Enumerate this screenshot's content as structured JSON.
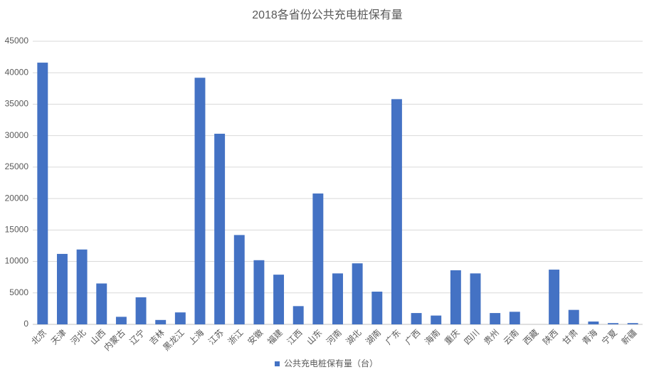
{
  "chart_data": {
    "type": "bar",
    "title": "2018各省份公共充电桩保有量",
    "categories": [
      "北京",
      "天津",
      "河北",
      "山西",
      "内蒙古",
      "辽宁",
      "吉林",
      "黑龙江",
      "上海",
      "江苏",
      "浙江",
      "安徽",
      "福建",
      "江西",
      "山东",
      "河南",
      "湖北",
      "湖南",
      "广东",
      "广西",
      "海南",
      "重庆",
      "四川",
      "贵州",
      "云南",
      "西藏",
      "陕西",
      "甘肃",
      "青海",
      "宁夏",
      "新疆"
    ],
    "series": [
      {
        "name": "公共充电桩保有量（台）",
        "color": "#4472c4",
        "values": [
          41600,
          11200,
          11900,
          6500,
          1200,
          4300,
          700,
          1900,
          39200,
          30300,
          14200,
          10200,
          7900,
          2900,
          20800,
          8100,
          9700,
          5200,
          35800,
          1800,
          1400,
          8600,
          8100,
          1800,
          2000,
          0,
          8700,
          2300,
          450,
          200,
          200
        ]
      }
    ],
    "ylim": [
      0,
      45000
    ],
    "yticks": [
      0,
      5000,
      10000,
      15000,
      20000,
      25000,
      30000,
      35000,
      40000,
      45000
    ],
    "grid": true
  }
}
